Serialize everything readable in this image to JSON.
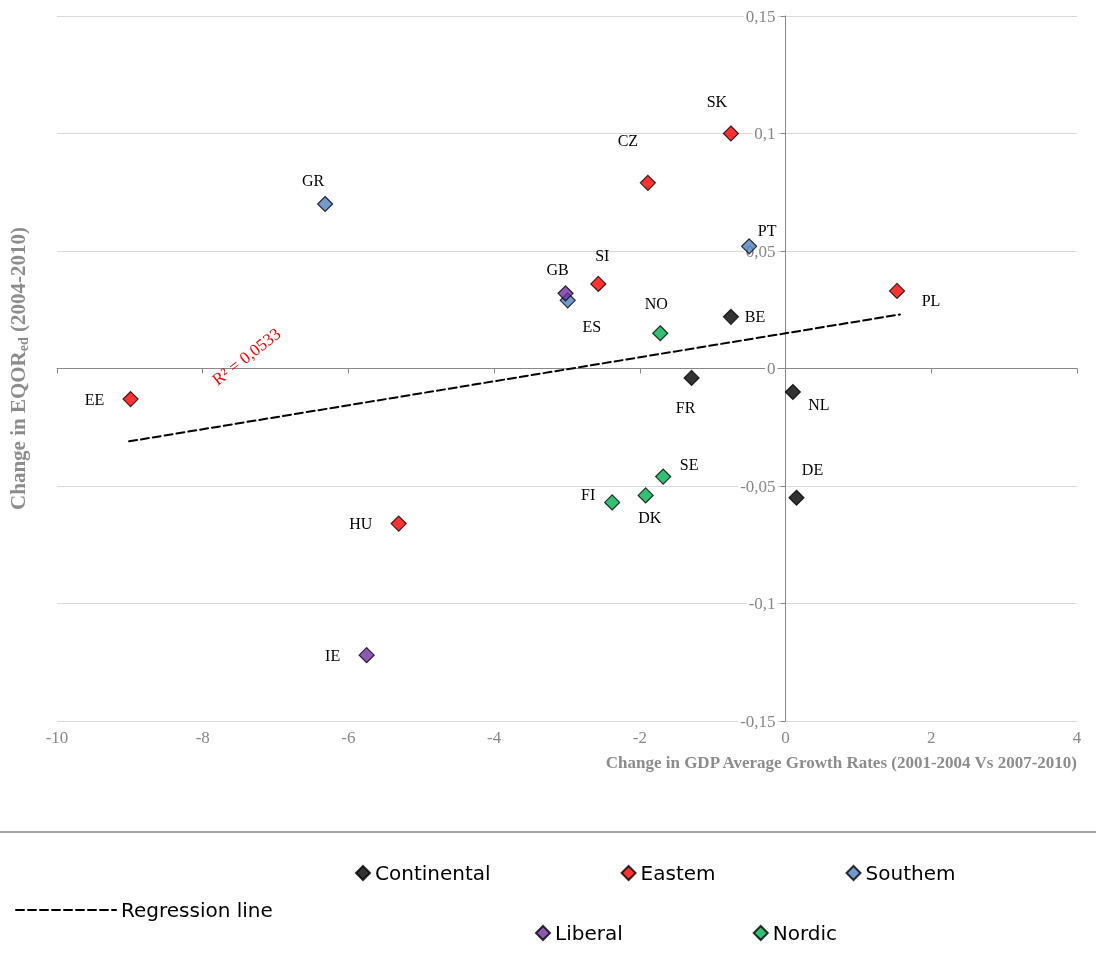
{
  "chart_data": {
    "type": "scatter",
    "xlabel": "Change in GDP Average Growth Rates (2001-2004 Vs 2007-2010)",
    "ylabel": "Change in EQOR$_{ed}$ (2004-2010)",
    "xlim": [
      -10,
      4
    ],
    "xticks": [
      -10,
      -8,
      -6,
      -4,
      -2,
      0,
      2,
      4
    ],
    "ylim": [
      -0.15,
      0.15
    ],
    "yticks": [
      {
        "value": -0.15,
        "label": "-0,15"
      },
      {
        "value": -0.1,
        "label": "-0,1"
      },
      {
        "value": -0.05,
        "label": "-0,05"
      },
      {
        "value": 0,
        "label": "0"
      },
      {
        "value": 0.05,
        "label": "0,05"
      },
      {
        "value": 0.1,
        "label": "0,1"
      },
      {
        "value": 0.15,
        "label": "0,15"
      }
    ],
    "grid": "y",
    "legend": "bottom",
    "marker": "diamond",
    "series": [
      {
        "name": "Regression line",
        "type": "line",
        "color": "#000000",
        "line_style": "dashed",
        "marker": "none",
        "x": [
          -9.01,
          1.57
        ],
        "values": [
          -0.031,
          0.023
        ]
      },
      {
        "name": "Continental",
        "color": "#000000",
        "x": [
          -1.29,
          -0.75,
          0.1,
          0.15
        ],
        "values": [
          -0.004,
          0.022,
          -0.01,
          -0.055
        ]
      },
      {
        "name": "Eastem",
        "color": "#ff0000",
        "x": [
          -8.99,
          -5.31,
          -2.57,
          -1.89,
          -0.75,
          1.53
        ],
        "values": [
          -0.013,
          -0.066,
          0.036,
          0.079,
          0.1,
          0.033
        ]
      },
      {
        "name": "Southem",
        "color": "#4f81bd",
        "x": [
          -6.32,
          -2.99,
          -0.5
        ],
        "values": [
          0.07,
          0.029,
          0.052
        ]
      },
      {
        "name": "Liberal",
        "color": "#7030a0",
        "x": [
          -5.75,
          -3.02
        ],
        "values": [
          -0.122,
          0.032
        ]
      },
      {
        "name": "Nordic",
        "color": "#00b050",
        "x": [
          -2.38,
          -1.92,
          -1.68,
          -1.72
        ],
        "values": [
          -0.057,
          -0.054,
          -0.046,
          0.015
        ]
      }
    ],
    "annotations": [
      {
        "text": "EE",
        "x": -8.99,
        "y": -0.013
      },
      {
        "text": "GR",
        "x": -6.32,
        "y": 0.07
      },
      {
        "text": "HU",
        "x": -5.31,
        "y": -0.066
      },
      {
        "text": "IE",
        "x": -5.75,
        "y": -0.122
      },
      {
        "text": "GB",
        "x": -3.02,
        "y": 0.032
      },
      {
        "text": "ES",
        "x": -2.99,
        "y": 0.029
      },
      {
        "text": "SI",
        "x": -2.57,
        "y": 0.036
      },
      {
        "text": "CZ",
        "x": -1.89,
        "y": 0.079
      },
      {
        "text": "NO",
        "x": -1.72,
        "y": 0.015
      },
      {
        "text": "FR",
        "x": -1.29,
        "y": -0.004
      },
      {
        "text": "FI",
        "x": -2.38,
        "y": -0.057
      },
      {
        "text": "DK",
        "x": -1.92,
        "y": -0.054
      },
      {
        "text": "SE",
        "x": -1.68,
        "y": -0.046
      },
      {
        "text": "SK",
        "x": -0.75,
        "y": 0.1
      },
      {
        "text": "PT",
        "x": -0.5,
        "y": 0.052
      },
      {
        "text": "BE",
        "x": -0.75,
        "y": 0.022
      },
      {
        "text": "NL",
        "x": 0.1,
        "y": -0.01
      },
      {
        "text": "DE",
        "x": 0.15,
        "y": -0.055
      },
      {
        "text": "PL",
        "x": 1.53,
        "y": 0.033
      },
      "R² = 0,0533"
    ]
  }
}
